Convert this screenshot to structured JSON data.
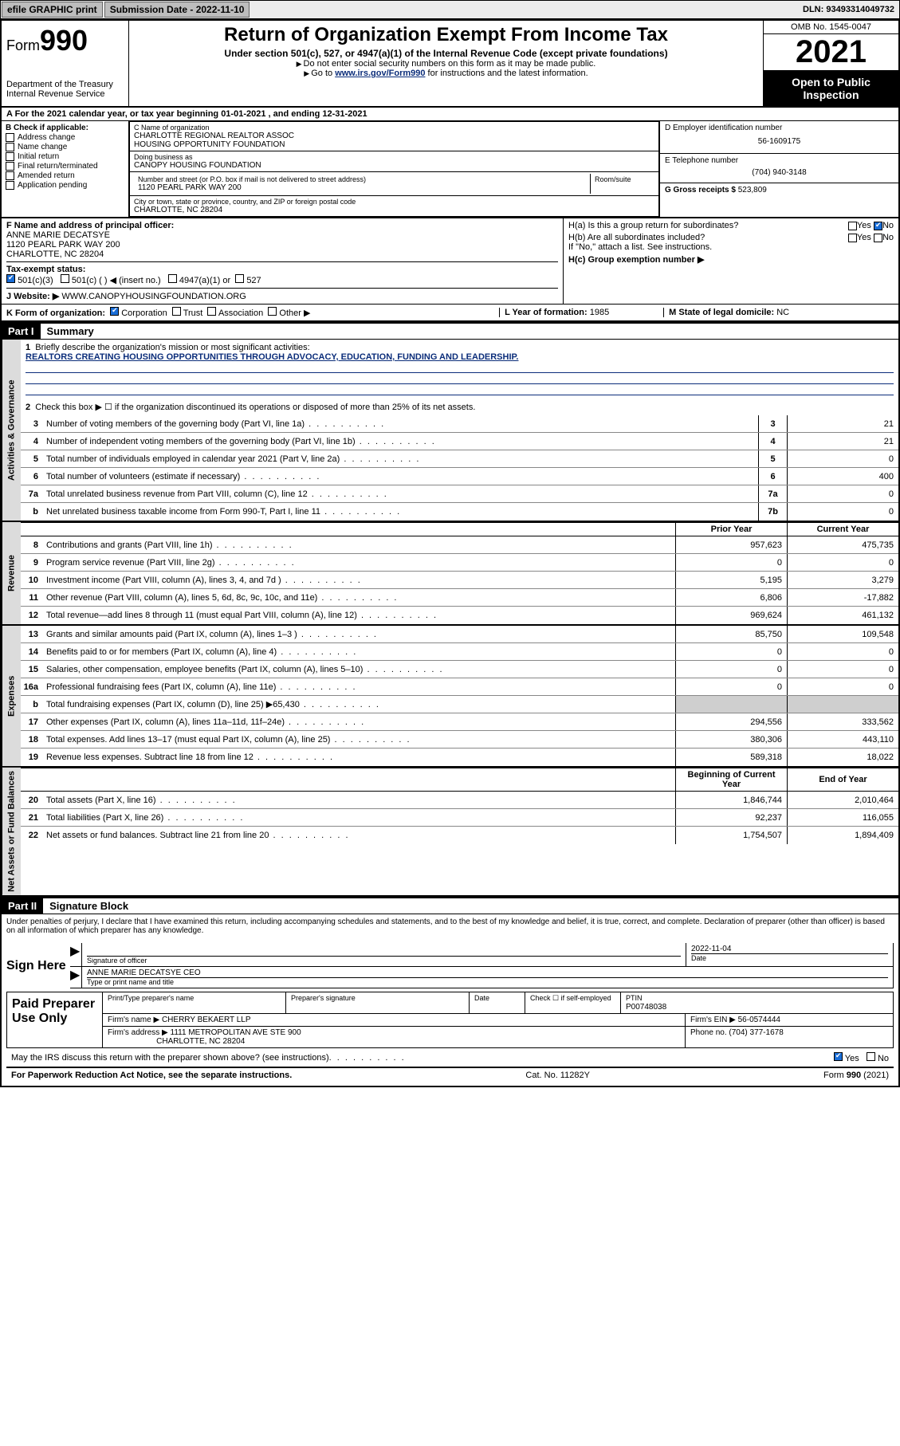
{
  "topbar": {
    "efile_btn": "efile GRAPHIC print",
    "sub_label": "Submission Date - 2022-11-10",
    "dln": "DLN: 93493314049732"
  },
  "header": {
    "form_prefix": "Form",
    "form_no": "990",
    "dept": "Department of the Treasury",
    "irs": "Internal Revenue Service",
    "title": "Return of Organization Exempt From Income Tax",
    "sub1": "Under section 501(c), 527, or 4947(a)(1) of the Internal Revenue Code (except private foundations)",
    "sub2": "Do not enter social security numbers on this form as it may be made public.",
    "sub3_pre": "Go to ",
    "sub3_link": "www.irs.gov/Form990",
    "sub3_post": " for instructions and the latest information.",
    "omb": "OMB No. 1545-0047",
    "year": "2021",
    "open": "Open to Public Inspection"
  },
  "period": "A For the 2021 calendar year, or tax year beginning 01-01-2021   , and ending 12-31-2021",
  "colB": {
    "title": "B Check if applicable:",
    "items": [
      "Address change",
      "Name change",
      "Initial return",
      "Final return/terminated",
      "Amended return",
      "Application pending"
    ]
  },
  "colC": {
    "name_lbl": "C Name of organization",
    "name1": "CHARLOTTE REGIONAL REALTOR ASSOC",
    "name2": "HOUSING OPPORTUNITY FOUNDATION",
    "dba_lbl": "Doing business as",
    "dba": "CANOPY HOUSING FOUNDATION",
    "addr_lbl": "Number and street (or P.O. box if mail is not delivered to street address)",
    "room_lbl": "Room/suite",
    "addr": "1120 PEARL PARK WAY 200",
    "city_lbl": "City or town, state or province, country, and ZIP or foreign postal code",
    "city": "CHARLOTTE, NC  28204"
  },
  "colD": {
    "d_lbl": "D Employer identification number",
    "d_val": "56-1609175",
    "e_lbl": "E Telephone number",
    "e_val": "(704) 940-3148",
    "g_lbl": "G Gross receipts $",
    "g_val": "523,809"
  },
  "rowF": {
    "f_lbl": "F Name and address of principal officer:",
    "f_name": "ANNE MARIE DECATSYE",
    "f_addr1": "1120 PEARL PARK WAY 200",
    "f_addr2": "CHARLOTTE, NC  28204",
    "ha": "H(a) Is this a group return for subordinates?",
    "hb": "H(b) Are all subordinates included?",
    "hnote": "If \"No,\" attach a list. See instructions.",
    "hc": "H(c) Group exemption number ▶",
    "yes": "Yes",
    "no": "No"
  },
  "rowI": {
    "lbl": "Tax-exempt status:",
    "o1": "501(c)(3)",
    "o2": "501(c) (  ) ◀ (insert no.)",
    "o3": "4947(a)(1) or",
    "o4": "527"
  },
  "rowJ": {
    "lbl": "J   Website: ▶",
    "val": "WWW.CANOPYHOUSINGFOUNDATION.ORG"
  },
  "rowK": {
    "lbl": "K Form of organization:",
    "o1": "Corporation",
    "o2": "Trust",
    "o3": "Association",
    "o4": "Other ▶",
    "l_lbl": "L Year of formation:",
    "l_val": "1985",
    "m_lbl": "M State of legal domicile:",
    "m_val": "NC"
  },
  "part1": {
    "label": "Part I",
    "title": "Summary",
    "q1": "Briefly describe the organization's mission or most significant activities:",
    "q1_ans": "REALTORS CREATING HOUSING OPPORTUNITIES THROUGH ADVOCACY, EDUCATION, FUNDING AND LEADERSHIP.",
    "q2": "Check this box ▶ ☐  if the organization discontinued its operations or disposed of more than 25% of its net assets.",
    "gov_rows": [
      {
        "n": "3",
        "t": "Number of voting members of the governing body (Part VI, line 1a)",
        "c": "3",
        "v": "21"
      },
      {
        "n": "4",
        "t": "Number of independent voting members of the governing body (Part VI, line 1b)",
        "c": "4",
        "v": "21"
      },
      {
        "n": "5",
        "t": "Total number of individuals employed in calendar year 2021 (Part V, line 2a)",
        "c": "5",
        "v": "0"
      },
      {
        "n": "6",
        "t": "Total number of volunteers (estimate if necessary)",
        "c": "6",
        "v": "400"
      },
      {
        "n": "7a",
        "t": "Total unrelated business revenue from Part VIII, column (C), line 12",
        "c": "7a",
        "v": "0"
      },
      {
        "n": "b",
        "t": "Net unrelated business taxable income from Form 990-T, Part I, line 11",
        "c": "7b",
        "v": "0"
      }
    ],
    "col_prior": "Prior Year",
    "col_curr": "Current Year",
    "rev_rows": [
      {
        "n": "8",
        "t": "Contributions and grants (Part VIII, line 1h)",
        "p": "957,623",
        "c": "475,735"
      },
      {
        "n": "9",
        "t": "Program service revenue (Part VIII, line 2g)",
        "p": "0",
        "c": "0"
      },
      {
        "n": "10",
        "t": "Investment income (Part VIII, column (A), lines 3, 4, and 7d )",
        "p": "5,195",
        "c": "3,279"
      },
      {
        "n": "11",
        "t": "Other revenue (Part VIII, column (A), lines 5, 6d, 8c, 9c, 10c, and 11e)",
        "p": "6,806",
        "c": "-17,882"
      },
      {
        "n": "12",
        "t": "Total revenue—add lines 8 through 11 (must equal Part VIII, column (A), line 12)",
        "p": "969,624",
        "c": "461,132"
      }
    ],
    "exp_rows": [
      {
        "n": "13",
        "t": "Grants and similar amounts paid (Part IX, column (A), lines 1–3 )",
        "p": "85,750",
        "c": "109,548"
      },
      {
        "n": "14",
        "t": "Benefits paid to or for members (Part IX, column (A), line 4)",
        "p": "0",
        "c": "0"
      },
      {
        "n": "15",
        "t": "Salaries, other compensation, employee benefits (Part IX, column (A), lines 5–10)",
        "p": "0",
        "c": "0"
      },
      {
        "n": "16a",
        "t": "Professional fundraising fees (Part IX, column (A), line 11e)",
        "p": "0",
        "c": "0"
      },
      {
        "n": "b",
        "t": "Total fundraising expenses (Part IX, column (D), line 25) ▶65,430",
        "p": "",
        "c": "",
        "shade": true
      },
      {
        "n": "17",
        "t": "Other expenses (Part IX, column (A), lines 11a–11d, 11f–24e)",
        "p": "294,556",
        "c": "333,562"
      },
      {
        "n": "18",
        "t": "Total expenses. Add lines 13–17 (must equal Part IX, column (A), line 25)",
        "p": "380,306",
        "c": "443,110"
      },
      {
        "n": "19",
        "t": "Revenue less expenses. Subtract line 18 from line 12",
        "p": "589,318",
        "c": "18,022"
      }
    ],
    "col_beg": "Beginning of Current Year",
    "col_end": "End of Year",
    "na_rows": [
      {
        "n": "20",
        "t": "Total assets (Part X, line 16)",
        "p": "1,846,744",
        "c": "2,010,464"
      },
      {
        "n": "21",
        "t": "Total liabilities (Part X, line 26)",
        "p": "92,237",
        "c": "116,055"
      },
      {
        "n": "22",
        "t": "Net assets or fund balances. Subtract line 21 from line 20",
        "p": "1,754,507",
        "c": "1,894,409"
      }
    ]
  },
  "part2": {
    "label": "Part II",
    "title": "Signature Block",
    "decl": "Under penalties of perjury, I declare that I have examined this return, including accompanying schedules and statements, and to the best of my knowledge and belief, it is true, correct, and complete. Declaration of preparer (other than officer) is based on all information of which preparer has any knowledge.",
    "sign_here": "Sign Here",
    "sig_officer": "Signature of officer",
    "sig_date": "Date",
    "sig_date_val": "2022-11-04",
    "officer_name": "ANNE MARIE DECATSYE CEO",
    "type_name": "Type or print name and title",
    "paid": "Paid Preparer Use Only",
    "prep_name_lbl": "Print/Type preparer's name",
    "prep_sig_lbl": "Preparer's signature",
    "date_lbl": "Date",
    "check_lbl": "Check ☐ if self-employed",
    "ptin_lbl": "PTIN",
    "ptin": "P00748038",
    "firm_name_lbl": "Firm's name   ▶",
    "firm_name": "CHERRY BEKAERT LLP",
    "firm_ein_lbl": "Firm's EIN ▶",
    "firm_ein": "56-0574444",
    "firm_addr_lbl": "Firm's address ▶",
    "firm_addr1": "1111 METROPOLITAN AVE STE 900",
    "firm_addr2": "CHARLOTTE, NC  28204",
    "phone_lbl": "Phone no.",
    "phone": "(704) 377-1678",
    "discuss": "May the IRS discuss this return with the preparer shown above? (see instructions)",
    "paperwork": "For Paperwork Reduction Act Notice, see the separate instructions.",
    "catno": "Cat. No. 11282Y",
    "formno": "Form 990 (2021)"
  },
  "tabs": {
    "gov": "Activities & Governance",
    "rev": "Revenue",
    "exp": "Expenses",
    "na": "Net Assets or Fund Balances"
  }
}
